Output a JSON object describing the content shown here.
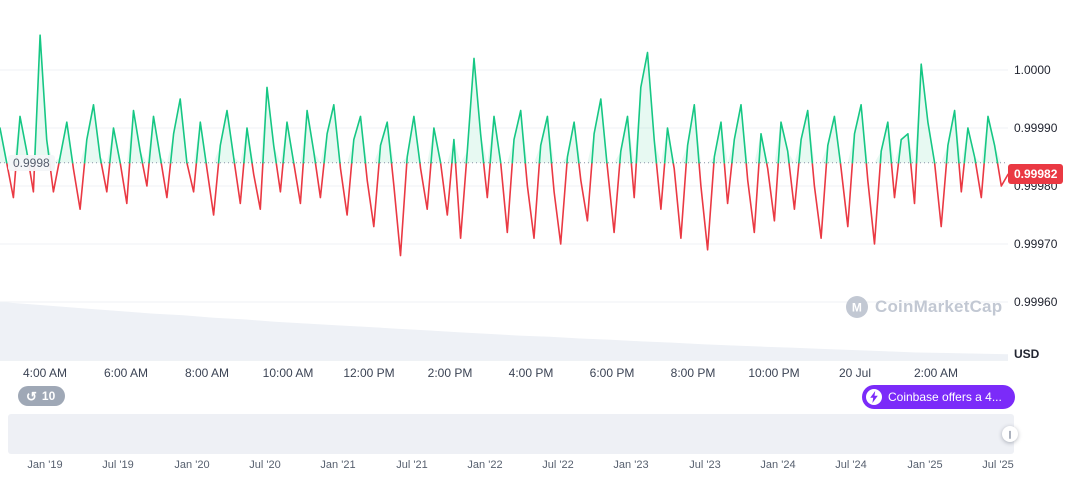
{
  "chart": {
    "baseline_label": "0.9998",
    "current_price_label": "0.99982",
    "unit_label": "USD",
    "y_axis_labels": [
      "1.0000",
      "0.99990",
      "0.99980",
      "0.99970",
      "0.99960"
    ],
    "x_axis_labels": [
      "4:00 AM",
      "6:00 AM",
      "8:00 AM",
      "10:00 AM",
      "12:00 PM",
      "2:00 PM",
      "4:00 PM",
      "6:00 PM",
      "8:00 PM",
      "10:00 PM",
      "20 Jul",
      "2:00 AM"
    ],
    "colors": {
      "up": "#16c784",
      "down": "#ea3943",
      "up_fill": "rgba(22,199,132,0.10)",
      "grid": "#eff2f5",
      "baseline": "#8b93a7",
      "history_area": "#eef1f6",
      "badge": "#ea3943",
      "promo": "#7b2bf9"
    }
  },
  "chart_data": {
    "type": "line",
    "title": "",
    "xlabel": "",
    "ylabel": "USD",
    "ylim": [
      0.99955,
      1.0001
    ],
    "y_ticks": [
      1.0,
      0.9999,
      0.9998,
      0.9997,
      0.9996
    ],
    "baseline": 0.99984,
    "current_value": 0.99982,
    "x_tick_labels": [
      "4:00 AM",
      "6:00 AM",
      "8:00 AM",
      "10:00 AM",
      "12:00 PM",
      "2:00 PM",
      "4:00 PM",
      "6:00 PM",
      "8:00 PM",
      "10:00 PM",
      "20 Jul",
      "2:00 AM"
    ],
    "values": [
      0.9999,
      0.99984,
      0.99978,
      0.99992,
      0.99986,
      0.99979,
      1.00006,
      0.99988,
      0.99979,
      0.99985,
      0.99991,
      0.99983,
      0.99976,
      0.99988,
      0.99994,
      0.99985,
      0.99979,
      0.9999,
      0.99984,
      0.99977,
      0.99993,
      0.99986,
      0.9998,
      0.99992,
      0.99985,
      0.99978,
      0.99989,
      0.99995,
      0.99984,
      0.99979,
      0.99991,
      0.99983,
      0.99975,
      0.99987,
      0.99993,
      0.99985,
      0.99977,
      0.9999,
      0.99982,
      0.99976,
      0.99997,
      0.99987,
      0.99979,
      0.99991,
      0.99984,
      0.99977,
      0.99993,
      0.99986,
      0.99978,
      0.99989,
      0.99994,
      0.99983,
      0.99975,
      0.99988,
      0.99992,
      0.99981,
      0.99973,
      0.99987,
      0.99991,
      0.9998,
      0.99968,
      0.99985,
      0.99992,
      0.99983,
      0.99976,
      0.9999,
      0.99984,
      0.99975,
      0.99988,
      0.99971,
      0.99986,
      1.00002,
      0.99989,
      0.99978,
      0.99992,
      0.99984,
      0.99972,
      0.99988,
      0.99993,
      0.9998,
      0.99971,
      0.99987,
      0.99992,
      0.99979,
      0.9997,
      0.99985,
      0.99991,
      0.99981,
      0.99974,
      0.99989,
      0.99995,
      0.99983,
      0.99972,
      0.99986,
      0.99992,
      0.99978,
      0.99997,
      1.00003,
      0.99988,
      0.99976,
      0.9999,
      0.99983,
      0.99971,
      0.99987,
      0.99994,
      0.9998,
      0.99969,
      0.99985,
      0.99991,
      0.99977,
      0.99988,
      0.99994,
      0.99981,
      0.99972,
      0.99989,
      0.99983,
      0.99974,
      0.99991,
      0.99986,
      0.99976,
      0.99988,
      0.99993,
      0.9998,
      0.99971,
      0.99987,
      0.99992,
      0.99983,
      0.99973,
      0.99989,
      0.99994,
      0.99981,
      0.9997,
      0.99986,
      0.99991,
      0.99978,
      0.99988,
      0.99989,
      0.99977,
      1.00001,
      0.99991,
      0.99984,
      0.99973,
      0.99987,
      0.99993,
      0.99979,
      0.9999,
      0.99985,
      0.99978,
      0.99992,
      0.99987,
      0.9998,
      0.99982
    ],
    "background_area": [
      1.0,
      0.96,
      0.92,
      0.88,
      0.84,
      0.8,
      0.77,
      0.73,
      0.7,
      0.66,
      0.63,
      0.6,
      0.57,
      0.54,
      0.51,
      0.48,
      0.45,
      0.42,
      0.4,
      0.37,
      0.35,
      0.32,
      0.3,
      0.27,
      0.25,
      0.23,
      0.21,
      0.19,
      0.17,
      0.15,
      0.13,
      0.12,
      0.11,
      0.1
    ]
  },
  "toolbar": {
    "history_count": "10",
    "promo_label": "Coinbase offers a 4..."
  },
  "watermark": {
    "text": "CoinMarketCap"
  },
  "navigator": {
    "labels": [
      "Jan '19",
      "Jul '19",
      "Jan '20",
      "Jul '20",
      "Jan '21",
      "Jul '21",
      "Jan '22",
      "Jul '22",
      "Jan '23",
      "Jul '23",
      "Jan '24",
      "Jul '24",
      "Jan '25",
      "Jul '25"
    ]
  }
}
